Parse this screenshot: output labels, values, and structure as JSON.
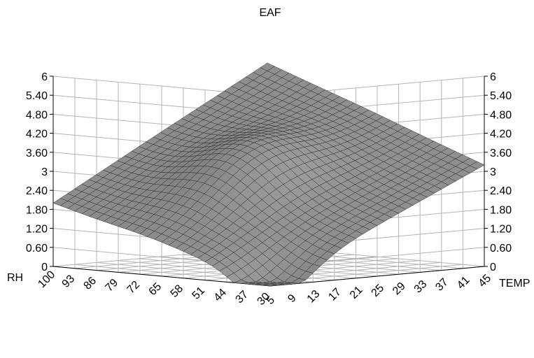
{
  "chart_data": {
    "type": "surface",
    "title": "",
    "zlabel": "EAF",
    "ylabel": "RH",
    "xlabel": "TEMP",
    "zlim": [
      0,
      6
    ],
    "z_ticks": [
      "0",
      "0.60",
      "1.20",
      "1.80",
      "2.40",
      "3",
      "3.60",
      "4.20",
      "4.80",
      "5.40",
      "6"
    ],
    "rh_ticks": [
      "100",
      "93",
      "86",
      "79",
      "72",
      "65",
      "58",
      "51",
      "44",
      "37",
      "30"
    ],
    "temp_ticks": [
      "5",
      "9",
      "13",
      "17",
      "21",
      "25",
      "29",
      "33",
      "37",
      "41",
      "45"
    ],
    "grid": true,
    "surface_color": "#8c8c8c",
    "corner_values": {
      "rh100_temp5": 2.0,
      "rh30_temp5": 0.0,
      "rh30_temp45": 3.2,
      "rh100_temp45": 5.8
    }
  }
}
